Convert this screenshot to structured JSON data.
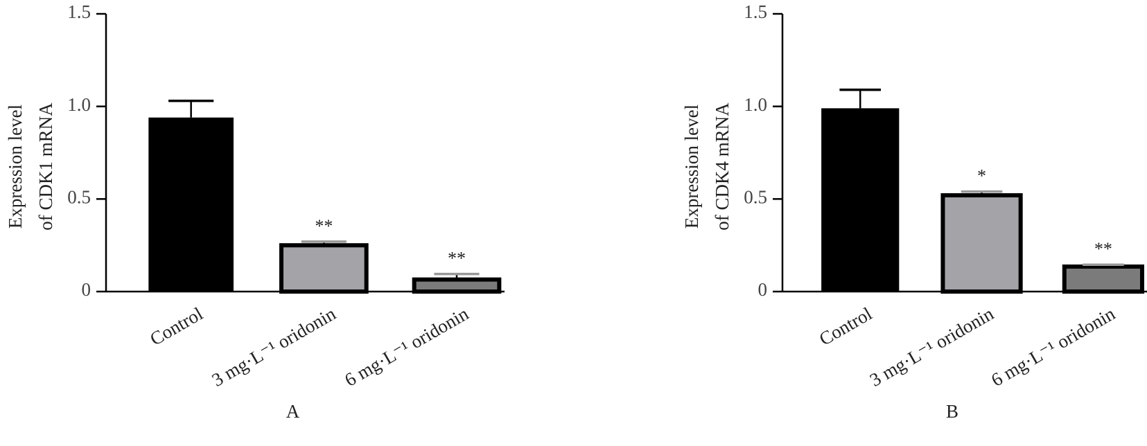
{
  "chart_data": [
    {
      "type": "bar",
      "panel": "A",
      "ylabel": [
        "Expression level",
        "of CDK1 mRNA"
      ],
      "categories": [
        "Control",
        "3 mg·L⁻¹ oridonin",
        "6 mg·L⁻¹ oridonin"
      ],
      "values": [
        0.94,
        0.25,
        0.065
      ],
      "errors": [
        0.09,
        0.02,
        0.03
      ],
      "annotations": [
        null,
        "**",
        "**"
      ],
      "colors": [
        "#000000",
        "#a3a3a8",
        "#7b7b7b"
      ],
      "ylim": [
        0,
        1.5
      ],
      "yticks": [
        0,
        0.5,
        {
          "value": 1,
          "label": "1.0"
        },
        1.5
      ]
    },
    {
      "type": "bar",
      "panel": "B",
      "ylabel": [
        "Expression level",
        "of CDK4 mRNA"
      ],
      "categories": [
        "Control",
        "3 mg·L⁻¹ oridonin",
        "6 mg·L⁻¹ oridonin"
      ],
      "values": [
        0.99,
        0.52,
        0.135
      ],
      "errors": [
        0.1,
        0.02,
        0.01
      ],
      "annotations": [
        null,
        "*",
        "**"
      ],
      "colors": [
        "#000000",
        "#a3a3a8",
        "#7b7b7b"
      ],
      "ylim": [
        0,
        1.5
      ],
      "yticks": [
        0,
        0.5,
        {
          "value": 1,
          "label": "1.0"
        },
        1.5
      ]
    }
  ]
}
